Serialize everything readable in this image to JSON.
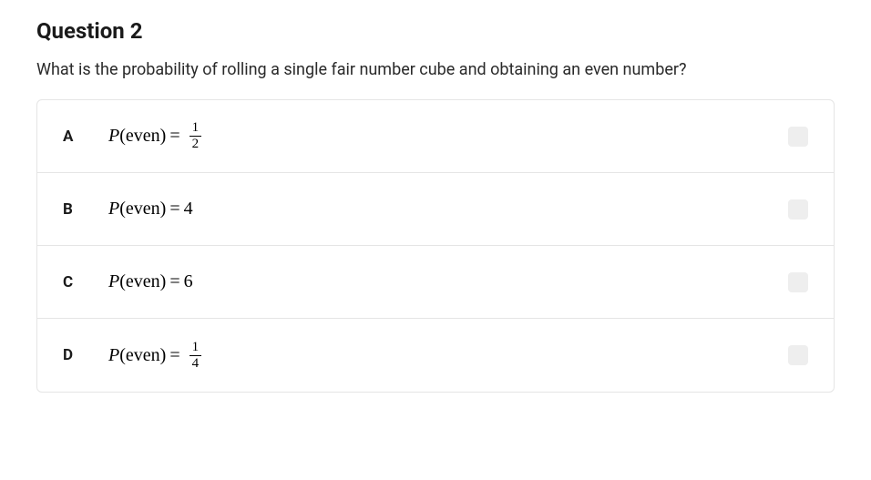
{
  "question": {
    "title": "Question 2",
    "prompt": "What is the probability of rolling a single fair number cube and obtaining an even number?"
  },
  "options": [
    {
      "letter": "A",
      "func": "P",
      "arg": "even",
      "type": "fraction",
      "numerator": "1",
      "denominator": "2"
    },
    {
      "letter": "B",
      "func": "P",
      "arg": "even",
      "type": "integer",
      "value": "4"
    },
    {
      "letter": "C",
      "func": "P",
      "arg": "even",
      "type": "integer",
      "value": "6"
    },
    {
      "letter": "D",
      "func": "P",
      "arg": "even",
      "type": "fraction",
      "numerator": "1",
      "denominator": "4"
    }
  ],
  "styling": {
    "title_fontsize": 24,
    "title_weight": 700,
    "prompt_fontsize": 18,
    "option_letter_fontsize": 17,
    "option_letter_weight": 700,
    "math_fontsize": 20,
    "fraction_fontsize": 15,
    "border_color": "#e5e5e5",
    "checkbox_bg": "#eeeeee",
    "checkbox_radius": 4,
    "text_color": "#1a1a1a",
    "background": "#ffffff",
    "math_font": "Times New Roman"
  }
}
